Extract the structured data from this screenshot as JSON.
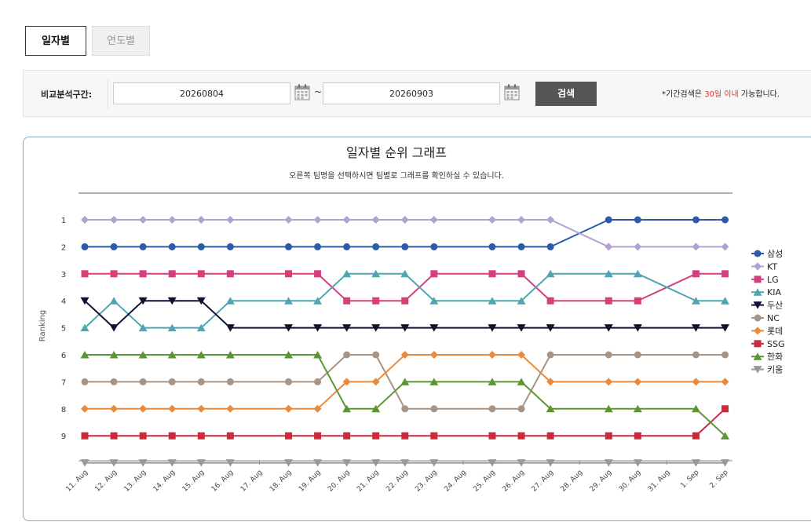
{
  "tabs": [
    {
      "label": "일자별",
      "active": true
    },
    {
      "label": "연도별",
      "active": false
    }
  ],
  "filter": {
    "label": "비교분석구간:",
    "start_date": "20260804",
    "end_date": "20260903",
    "separator": "~",
    "search_label": "검색",
    "note_prefix": "*기간검색은 ",
    "note_highlight": "30일 이내",
    "note_suffix": " 가능합니다."
  },
  "colors": {
    "highlight": "#d13a2f",
    "search_button": "#555555",
    "panel_border": "#8aa3c9"
  },
  "chart_data": {
    "type": "line",
    "title": "일자별 순위 그래프",
    "subtitle": "오른쪽 팀명을 선택하시면 팀별로 그래프를 확인하실 수 있습니다.",
    "ylabel": "Ranking",
    "yticks": [
      1,
      2,
      3,
      4,
      5,
      6,
      7,
      8,
      9
    ],
    "ylim": [
      0,
      10
    ],
    "y_reversed": true,
    "legend_position": "right",
    "categories": [
      "11. Aug",
      "12. Aug",
      "13. Aug",
      "14. Aug",
      "15. Aug",
      "16. Aug",
      "17. Aug",
      "18. Aug",
      "19. Aug",
      "20. Aug",
      "21. Aug",
      "22. Aug",
      "23. Aug",
      "24. Aug",
      "25. Aug",
      "26. Aug",
      "27. Aug",
      "28. Aug",
      "29. Aug",
      "30. Aug",
      "31. Aug",
      "1. Sep",
      "2. Sep"
    ],
    "series": [
      {
        "name": "삼성",
        "color": "#2b5ba8",
        "marker": "circle",
        "values": [
          2,
          2,
          2,
          2,
          2,
          2,
          null,
          2,
          2,
          2,
          2,
          2,
          2,
          null,
          2,
          2,
          2,
          null,
          1,
          1,
          null,
          1,
          1
        ]
      },
      {
        "name": "KT",
        "color": "#b3a1cf",
        "marker": "diamond",
        "values": [
          1,
          1,
          1,
          1,
          1,
          1,
          null,
          1,
          1,
          1,
          1,
          1,
          1,
          null,
          1,
          1,
          1,
          null,
          2,
          2,
          null,
          2,
          2
        ]
      },
      {
        "name": "LG",
        "color": "#d63f7c",
        "marker": "square",
        "values": [
          3,
          3,
          3,
          3,
          3,
          3,
          null,
          3,
          3,
          4,
          4,
          4,
          3,
          null,
          3,
          3,
          4,
          null,
          4,
          4,
          null,
          3,
          3
        ]
      },
      {
        "name": "KIA",
        "color": "#4fa6b2",
        "marker": "triangle-up",
        "values": [
          5,
          4,
          5,
          5,
          5,
          4,
          null,
          4,
          4,
          3,
          3,
          3,
          4,
          null,
          4,
          4,
          3,
          null,
          3,
          3,
          null,
          4,
          4
        ]
      },
      {
        "name": "두산",
        "color": "#111133",
        "marker": "triangle-down",
        "values": [
          4,
          5,
          4,
          4,
          4,
          5,
          null,
          5,
          5,
          5,
          5,
          5,
          5,
          null,
          5,
          5,
          5,
          null,
          5,
          5,
          null,
          5,
          5
        ]
      },
      {
        "name": "NC",
        "color": "#a89484",
        "marker": "circle",
        "values": [
          7,
          7,
          7,
          7,
          7,
          7,
          null,
          7,
          7,
          6,
          6,
          8,
          8,
          null,
          8,
          8,
          6,
          null,
          6,
          6,
          null,
          6,
          6
        ]
      },
      {
        "name": "롯데",
        "color": "#e98a3c",
        "marker": "diamond",
        "values": [
          8,
          8,
          8,
          8,
          8,
          8,
          null,
          8,
          8,
          7,
          7,
          6,
          6,
          null,
          6,
          6,
          7,
          null,
          7,
          7,
          null,
          7,
          7
        ]
      },
      {
        "name": "SSG",
        "color": "#cc2a3a",
        "marker": "square",
        "values": [
          9,
          9,
          9,
          9,
          9,
          9,
          null,
          9,
          9,
          9,
          9,
          9,
          9,
          null,
          9,
          9,
          9,
          null,
          9,
          9,
          null,
          9,
          8
        ]
      },
      {
        "name": "한화",
        "color": "#5c9632",
        "marker": "triangle-up",
        "values": [
          6,
          6,
          6,
          6,
          6,
          6,
          null,
          6,
          6,
          8,
          8,
          7,
          7,
          null,
          7,
          7,
          8,
          null,
          8,
          8,
          null,
          8,
          9
        ]
      },
      {
        "name": "키움",
        "color": "#999999",
        "marker": "triangle-down",
        "values": [
          10,
          10,
          10,
          10,
          10,
          10,
          null,
          10,
          10,
          10,
          10,
          10,
          10,
          null,
          10,
          10,
          10,
          null,
          10,
          10,
          null,
          10,
          10
        ]
      }
    ]
  }
}
